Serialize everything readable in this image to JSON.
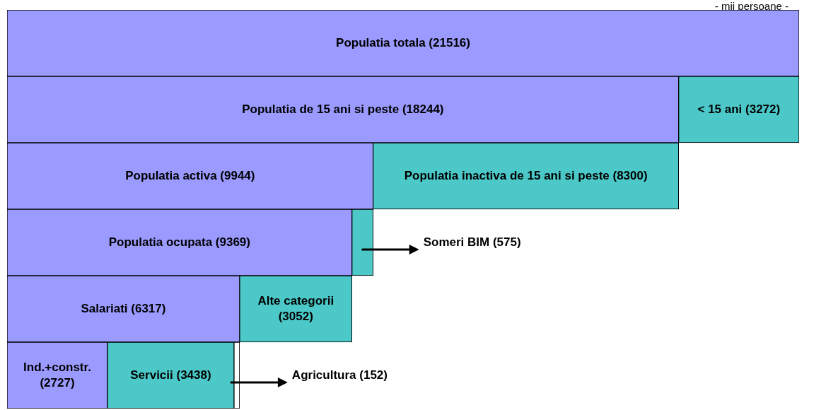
{
  "chart_data": {
    "type": "bar",
    "orientation": "horizontal",
    "stacked": true,
    "tick_labels": false,
    "grid": false,
    "legend": false,
    "xlim": [
      0,
      21516
    ],
    "categories": [
      null,
      null,
      null,
      null,
      null,
      null
    ],
    "series": [
      {
        "color": "#9a9aff",
        "values": [
          21516,
          18244,
          9944,
          9369,
          6317,
          2727
        ],
        "value_labels": [
          "Populatia totala (21516)",
          "Populatia de 15 ani si peste (18244)",
          "Populatia activa (9944)",
          "Populatia ocupata (9369)",
          "Salariati (6317)",
          "Ind.+constr. (2727)"
        ]
      },
      {
        "color": "#4cc8c8",
        "values": [
          null,
          3272,
          8300,
          575,
          3052,
          3438
        ],
        "value_labels": [
          null,
          "< 15 ani (3272)",
          "Populatia inactiva de 15 ani si peste (8300)",
          "Someri BIM (575)",
          "Alte categorii (3052)",
          "Servicii (3438)"
        ]
      },
      {
        "color": "#ffffff",
        "values": [
          null,
          null,
          null,
          null,
          null,
          152
        ],
        "value_labels": [
          null,
          null,
          null,
          null,
          null,
          "Agricultura (152)"
        ]
      }
    ],
    "annotations": [
      "- mii persoane -"
    ]
  }
}
